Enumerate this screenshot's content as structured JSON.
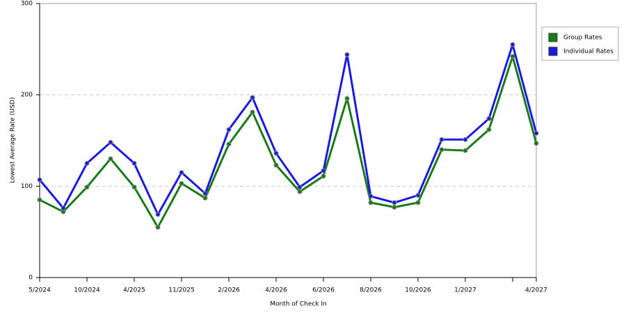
{
  "chart_data": {
    "type": "line",
    "x_label": "Month of Check In",
    "y_label": "Lowest Average Rate (USD)",
    "categories": [
      "5/2024",
      null,
      "10/2024",
      null,
      "4/2025",
      null,
      "11/2025",
      null,
      "2/2026",
      null,
      "4/2026",
      null,
      "6/2026",
      null,
      "8/2026",
      null,
      "10/2026",
      null,
      "1/2027",
      null,
      null,
      "4/2027"
    ],
    "series": [
      {
        "name": "Group Rates",
        "color": "#1a7a1a",
        "values": [
          85,
          72,
          99,
          130,
          99,
          55,
          103,
          87,
          146,
          181,
          123,
          94,
          111,
          196,
          82,
          77,
          82,
          140,
          139,
          162,
          242,
          147
        ]
      },
      {
        "name": "Individual Rates",
        "color": "#1a1adc",
        "values": [
          107,
          76,
          125,
          148,
          125,
          69,
          115,
          92,
          162,
          197,
          136,
          99,
          117,
          244,
          89,
          82,
          90,
          151,
          151,
          174,
          255,
          158
        ]
      }
    ],
    "ylim": [
      0,
      300
    ],
    "yticks": [
      0,
      100,
      200,
      300
    ],
    "grid": true,
    "legend": "upper right"
  }
}
